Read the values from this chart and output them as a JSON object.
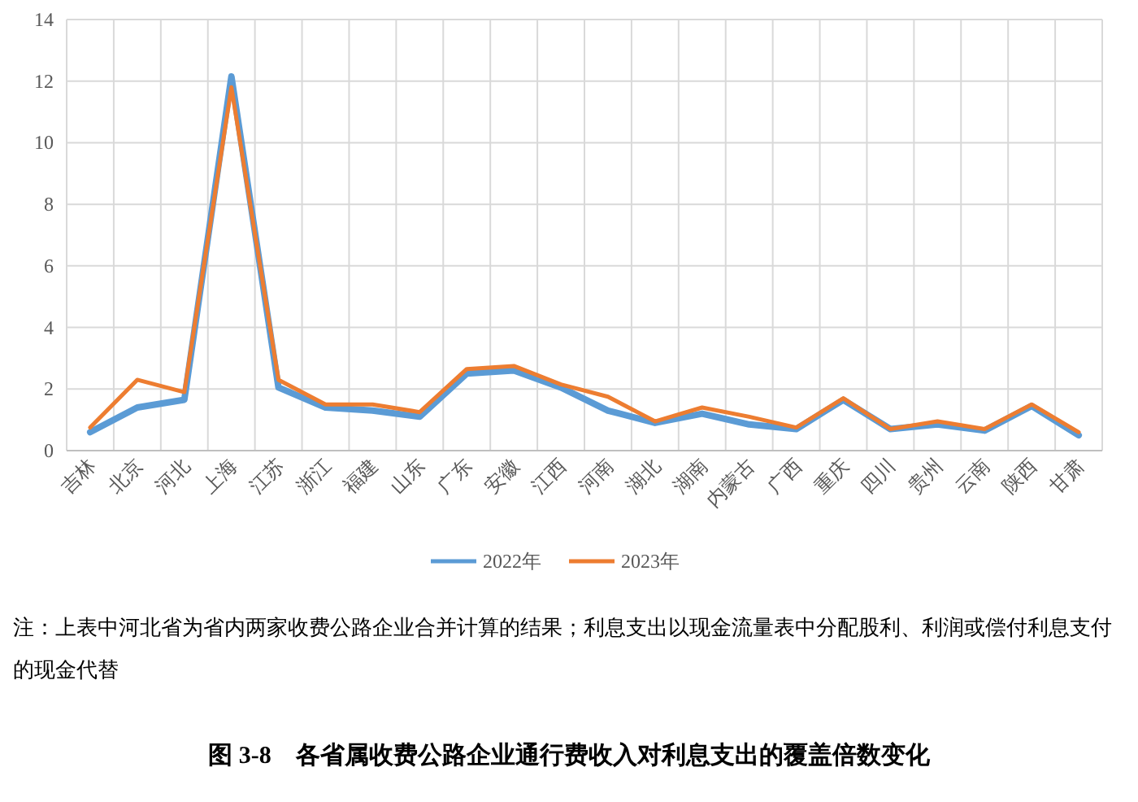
{
  "chart_data": {
    "type": "line",
    "title": "图 3-8　各省属收费公路企业通行费收入对利息支出的覆盖倍数变化",
    "categories": [
      "吉林",
      "北京",
      "河北",
      "上海",
      "江苏",
      "浙江",
      "福建",
      "山东",
      "广东",
      "安徽",
      "江西",
      "河南",
      "湖北",
      "湖南",
      "内蒙古",
      "广西",
      "重庆",
      "四川",
      "贵州",
      "云南",
      "陕西",
      "甘肃"
    ],
    "series": [
      {
        "name": "2022年",
        "color": "#5b9bd5",
        "values": [
          0.6,
          1.4,
          1.65,
          12.15,
          2.05,
          1.4,
          1.3,
          1.1,
          2.5,
          2.6,
          2.05,
          1.3,
          0.9,
          1.2,
          0.85,
          0.7,
          1.65,
          0.7,
          0.85,
          0.65,
          1.45,
          0.5
        ]
      },
      {
        "name": "2023年",
        "color": "#ed7d31",
        "values": [
          0.75,
          2.3,
          1.9,
          11.8,
          2.3,
          1.5,
          1.5,
          1.25,
          2.65,
          2.75,
          2.15,
          1.75,
          0.95,
          1.4,
          1.1,
          0.75,
          1.7,
          0.7,
          0.95,
          0.7,
          1.5,
          0.6
        ]
      }
    ],
    "ylim": [
      0,
      14
    ],
    "yticks": [
      0,
      2,
      4,
      6,
      8,
      10,
      12,
      14
    ],
    "grid": true,
    "legend": "bottom",
    "annotations": [
      "注：上表中河北省为省内两家收费公路企业合并计算的结果；利息支出以现金流量表中分配股利、利润或偿付利息支付的现金代替"
    ]
  }
}
